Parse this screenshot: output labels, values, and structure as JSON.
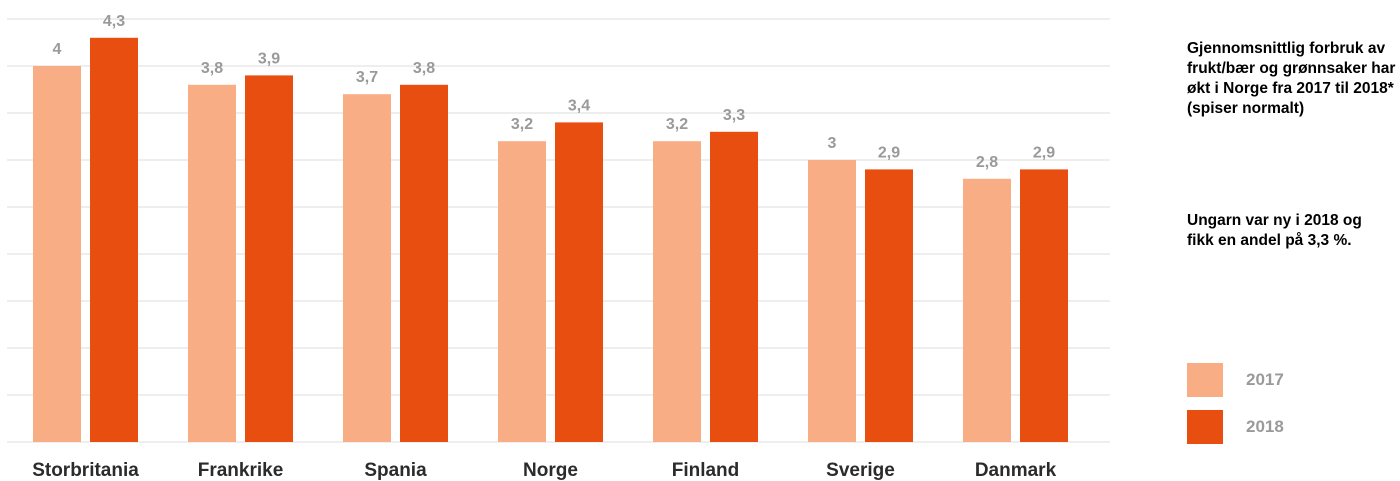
{
  "chart_data": {
    "type": "bar",
    "categories": [
      "Storbritania",
      "Frankrike",
      "Spania",
      "Norge",
      "Finland",
      "Sverige",
      "Danmark"
    ],
    "series": [
      {
        "name": "2017",
        "values": [
          4,
          3.8,
          3.7,
          3.2,
          3.2,
          3,
          2.8
        ],
        "labels": [
          "4",
          "3,8",
          "3,7",
          "3,2",
          "3,2",
          "3",
          "2,8"
        ],
        "color": "#f8ad84"
      },
      {
        "name": "2018",
        "values": [
          4.3,
          3.9,
          3.8,
          3.4,
          3.3,
          2.9,
          2.9
        ],
        "labels": [
          "4,3",
          "3,9",
          "3,8",
          "3,4",
          "3,3",
          "2,9",
          "2,9"
        ],
        "color": "#e84e10"
      }
    ],
    "ylim": [
      0,
      4.5
    ],
    "grid": true,
    "legend": "right",
    "title": "",
    "xlabel": "",
    "ylabel": ""
  },
  "notes": {
    "note1": "Gjennomsnittlig forbruk av frukt/bær og grønnsaker har økt i Norge fra 2017 til 2018* (spiser normalt)",
    "note2": "Ungarn var ny i 2018 og fikk en andel på 3,3 %."
  },
  "legend": {
    "label_2017": "2017",
    "label_2018": "2018"
  },
  "colors": {
    "series_2017": "#f8ad84",
    "series_2018": "#e84e10",
    "grid": "#dcdcdc",
    "value_label": "#9a9a9a",
    "category_label": "#2b2b2b"
  }
}
